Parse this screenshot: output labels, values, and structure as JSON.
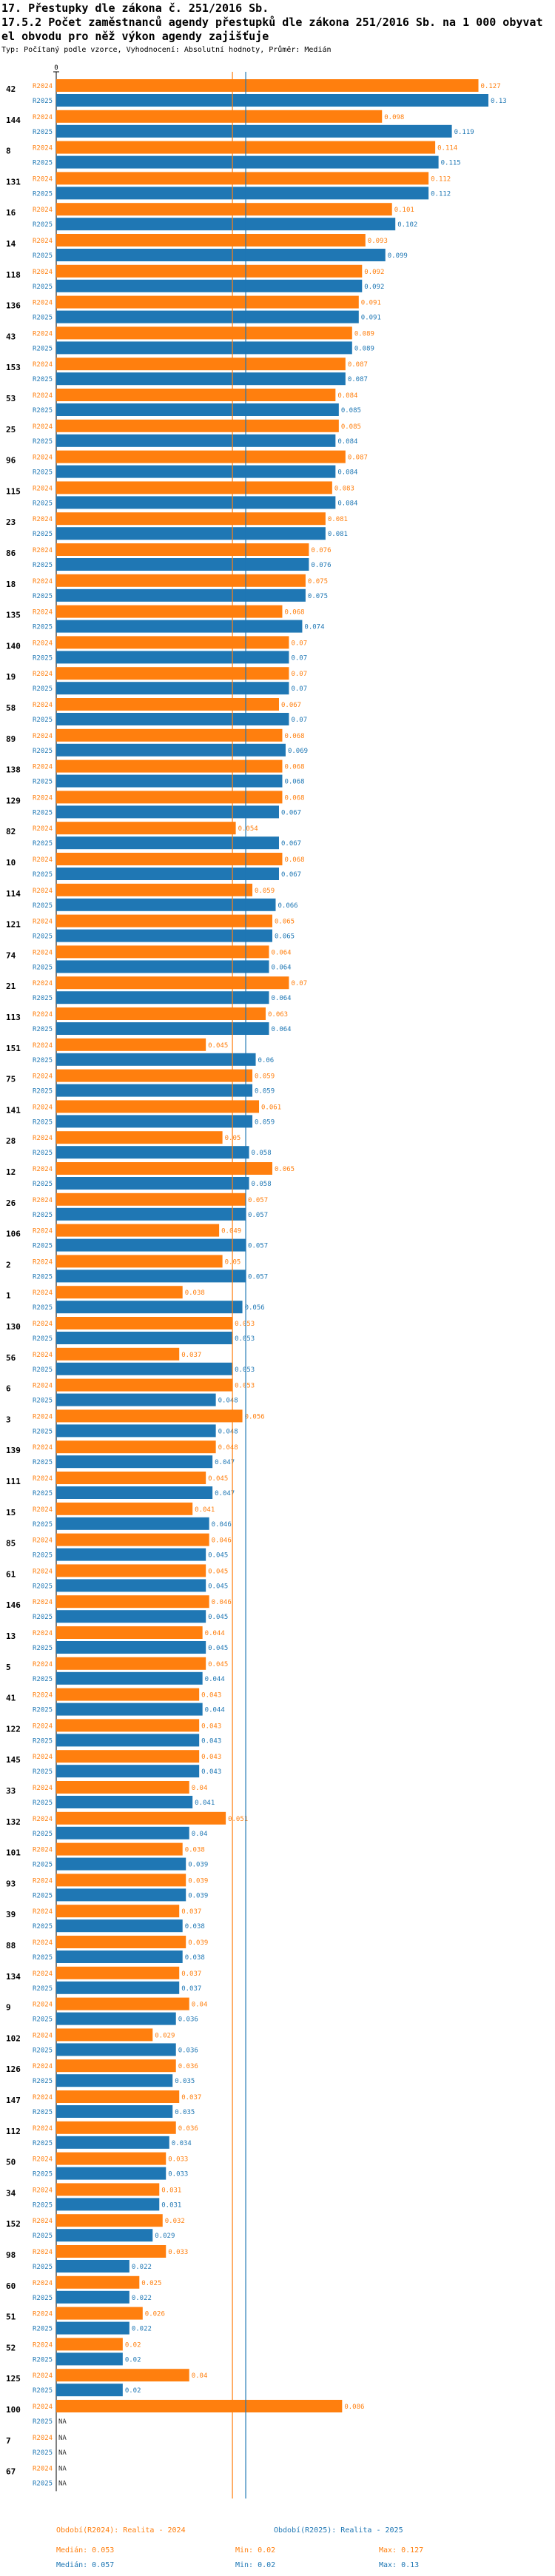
{
  "header": {
    "title": "17. Přestupky dle zákona č. 251/2016 Sb.",
    "subtitle_line1": "17.5.2 Počet zaměstnanců agendy přestupků dle zákona 251/2016 Sb. na 1 000 obyvat",
    "subtitle_line2": "el obvodu pro něž výkon agendy zajišťuje",
    "type_line": "Typ: Počítaný podle vzorce, Vyhodnocení: Absolutní hodnoty, Průměr: Medián"
  },
  "colors": {
    "r2024": "#ff7f0e",
    "r2025": "#1f77b4"
  },
  "legend": {
    "r2024": {
      "label": "Období(R2024): Realita - 2024",
      "median": "Medián: 0.053",
      "min": "Min: 0.02",
      "max": "Max: 0.127"
    },
    "r2025": {
      "label": "Období(R2025): Realita - 2025",
      "median": "Medián: 0.057",
      "min": "Min: 0.02",
      "max": "Max: 0.13"
    }
  },
  "chart_data": {
    "type": "bar",
    "orientation": "horizontal",
    "xlim": [
      0,
      0.13
    ],
    "x_tick_labels": [
      "0"
    ],
    "series_labels": [
      "R2024",
      "R2025"
    ],
    "medians": {
      "R2024": 0.053,
      "R2025": 0.057
    },
    "missing_label": "NA",
    "categories": [
      "42",
      "144",
      "8",
      "131",
      "16",
      "14",
      "118",
      "136",
      "43",
      "153",
      "53",
      "25",
      "96",
      "115",
      "23",
      "86",
      "18",
      "135",
      "140",
      "19",
      "58",
      "89",
      "138",
      "129",
      "82",
      "10",
      "114",
      "121",
      "74",
      "21",
      "113",
      "151",
      "75",
      "141",
      "28",
      "12",
      "26",
      "106",
      "2",
      "1",
      "130",
      "56",
      "6",
      "3",
      "139",
      "111",
      "15",
      "85",
      "61",
      "146",
      "13",
      "5",
      "41",
      "122",
      "145",
      "33",
      "132",
      "101",
      "93",
      "39",
      "88",
      "134",
      "9",
      "102",
      "126",
      "147",
      "112",
      "50",
      "34",
      "152",
      "98",
      "60",
      "51",
      "52",
      "125",
      "100",
      "7",
      "67"
    ],
    "series": [
      {
        "name": "R2024",
        "values": [
          0.127,
          0.098,
          0.114,
          0.112,
          0.101,
          0.093,
          0.092,
          0.091,
          0.089,
          0.087,
          0.084,
          0.085,
          0.087,
          0.083,
          0.081,
          0.076,
          0.075,
          0.068,
          0.07,
          0.07,
          0.067,
          0.068,
          0.068,
          0.068,
          0.054,
          0.068,
          0.059,
          0.065,
          0.064,
          0.07,
          0.063,
          0.045,
          0.059,
          0.061,
          0.05,
          0.065,
          0.057,
          0.049,
          0.05,
          0.038,
          0.053,
          0.037,
          0.053,
          0.056,
          0.048,
          0.045,
          0.041,
          0.046,
          0.045,
          0.046,
          0.044,
          0.045,
          0.043,
          0.043,
          0.043,
          0.04,
          0.051,
          0.038,
          0.039,
          0.037,
          0.039,
          0.037,
          0.04,
          0.029,
          0.036,
          0.037,
          0.036,
          0.033,
          0.031,
          0.032,
          0.033,
          0.025,
          0.026,
          0.02,
          0.04,
          0.086,
          null,
          null
        ]
      },
      {
        "name": "R2025",
        "values": [
          0.13,
          0.119,
          0.115,
          0.112,
          0.102,
          0.099,
          0.092,
          0.091,
          0.089,
          0.087,
          0.085,
          0.084,
          0.084,
          0.084,
          0.081,
          0.076,
          0.075,
          0.074,
          0.07,
          0.07,
          0.07,
          0.069,
          0.068,
          0.067,
          0.067,
          0.067,
          0.066,
          0.065,
          0.064,
          0.064,
          0.064,
          0.06,
          0.059,
          0.059,
          0.058,
          0.058,
          0.057,
          0.057,
          0.057,
          0.056,
          0.053,
          0.053,
          0.048,
          0.048,
          0.047,
          0.047,
          0.046,
          0.045,
          0.045,
          0.045,
          0.045,
          0.044,
          0.044,
          0.043,
          0.043,
          0.041,
          0.04,
          0.039,
          0.039,
          0.038,
          0.038,
          0.037,
          0.036,
          0.036,
          0.035,
          0.035,
          0.034,
          0.033,
          0.031,
          0.029,
          0.022,
          0.022,
          0.022,
          0.02,
          0.02,
          null,
          null,
          null
        ]
      }
    ]
  }
}
